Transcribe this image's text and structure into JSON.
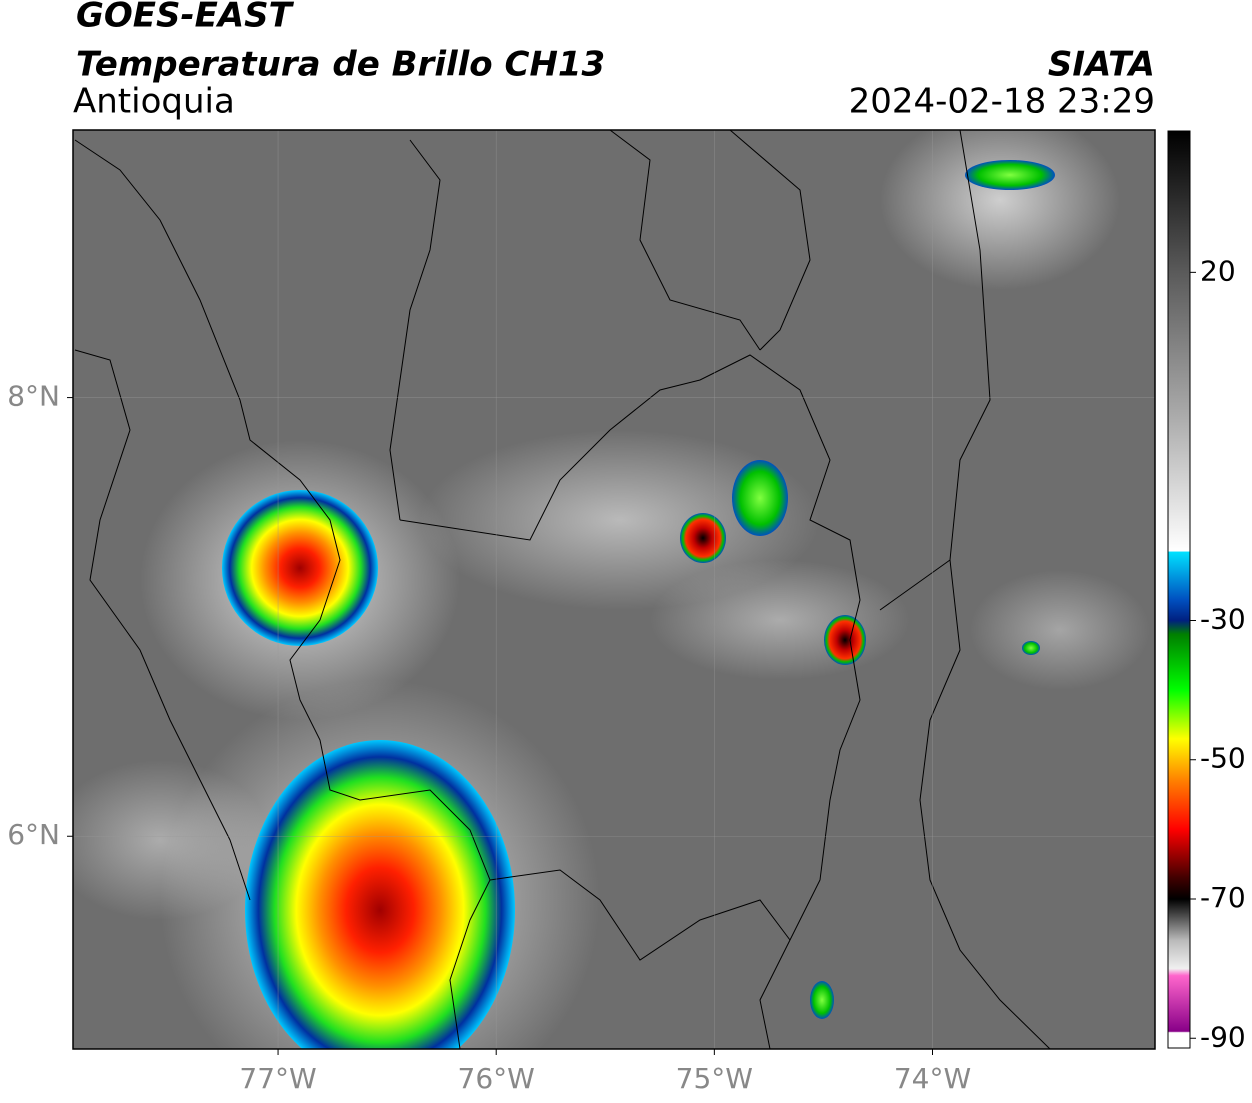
{
  "header": {
    "title": "GOES-EAST",
    "subtitle": "Temperatura de Brillo CH13",
    "region": "Antioquia",
    "source": "SIATA",
    "timestamp": "2024-02-18 23:29"
  },
  "map": {
    "lonlim": [
      -77.94,
      -72.98
    ],
    "latlim": [
      5.03,
      9.22
    ],
    "grid": true,
    "lonticks": [
      {
        "value": -77,
        "label": "77°W"
      },
      {
        "value": -76,
        "label": "76°W"
      },
      {
        "value": -75,
        "label": "75°W"
      },
      {
        "value": -74,
        "label": "74°W"
      }
    ],
    "latticks": [
      {
        "value": 8,
        "label": "8°N"
      },
      {
        "value": 6,
        "label": "6°N"
      }
    ]
  },
  "colorbar": {
    "range": [
      -91.4,
      40.3
    ],
    "ticks": [
      20,
      -30,
      -50,
      -70,
      -90
    ],
    "stops": [
      {
        "value": 40.3,
        "color": "#000000"
      },
      {
        "value": 20,
        "color": "#5a5a5a"
      },
      {
        "value": 0,
        "color": "#a8a8a8"
      },
      {
        "value": -20,
        "color": "#ffffff"
      },
      {
        "value": -20.2,
        "color": "#00e0ff"
      },
      {
        "value": -27,
        "color": "#0050c0"
      },
      {
        "value": -30,
        "color": "#002080"
      },
      {
        "value": -32,
        "color": "#008000"
      },
      {
        "value": -40,
        "color": "#00ff00"
      },
      {
        "value": -47,
        "color": "#ffff00"
      },
      {
        "value": -53,
        "color": "#ff8000"
      },
      {
        "value": -60,
        "color": "#ff0000"
      },
      {
        "value": -67,
        "color": "#400000"
      },
      {
        "value": -70,
        "color": "#000000"
      },
      {
        "value": -76,
        "color": "#bbbbbb"
      },
      {
        "value": -80,
        "color": "#f0f0f0"
      },
      {
        "value": -81,
        "color": "#ff66cc"
      },
      {
        "value": -89,
        "color": "#880088"
      },
      {
        "value": -89.2,
        "color": "#ffffff"
      },
      {
        "value": -91.4,
        "color": "#ffffff"
      }
    ]
  }
}
